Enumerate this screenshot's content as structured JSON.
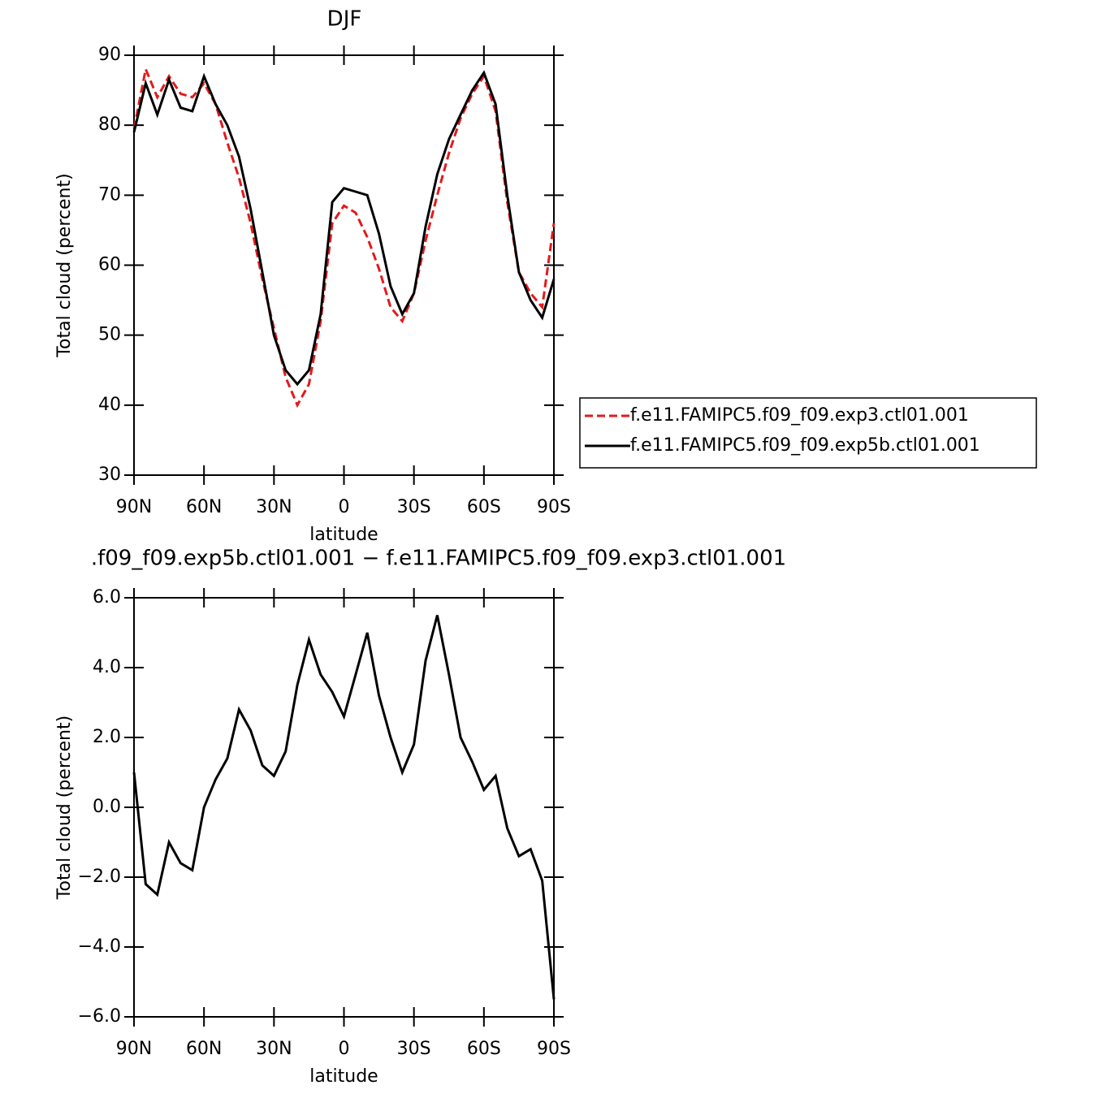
{
  "chart_data": [
    {
      "type": "line",
      "title": "DJF",
      "xlabel": "latitude",
      "ylabel": "Total cloud (percent)",
      "x": [
        90,
        85,
        80,
        75,
        70,
        65,
        60,
        55,
        50,
        45,
        40,
        35,
        30,
        25,
        20,
        15,
        10,
        5,
        0,
        -5,
        -10,
        -15,
        -20,
        -25,
        -30,
        -35,
        -40,
        -45,
        -50,
        -55,
        -60,
        -65,
        -70,
        -75,
        -80,
        -85,
        -90
      ],
      "xlim": [
        90,
        -90
      ],
      "xticks": [
        {
          "value": 90,
          "label": "90N"
        },
        {
          "value": 60,
          "label": "60N"
        },
        {
          "value": 30,
          "label": "30N"
        },
        0,
        {
          "value": -30,
          "label": "30S"
        },
        {
          "value": -60,
          "label": "60S"
        },
        {
          "value": -90,
          "label": "90S"
        }
      ],
      "ylim": [
        30,
        90
      ],
      "yticks": [
        30,
        40,
        50,
        60,
        70,
        80,
        90
      ],
      "legend": "right",
      "series": [
        {
          "name": "f.e11.FAMIPC5.f09_f09.exp3.ctl01.001",
          "color": "#e31a1c",
          "line_style": "dashed",
          "values": [
            79.5,
            88,
            84,
            87,
            84.5,
            84,
            86,
            83,
            77.5,
            72.5,
            66,
            58,
            51,
            44,
            40,
            43,
            52,
            66,
            68.5,
            67.5,
            64,
            59.5,
            54,
            52,
            56,
            63.5,
            70,
            76,
            81,
            84.5,
            87,
            82,
            69,
            59,
            56,
            54,
            66
          ]
        },
        {
          "name": "f.e11.FAMIPC5.f09_f09.exp5b.ctl01.001",
          "color": "#000000",
          "line_style": "solid",
          "values": [
            79,
            86,
            81.5,
            86.5,
            82.5,
            82,
            87,
            83,
            80,
            75.5,
            68,
            59,
            50,
            45,
            43,
            45,
            53,
            69,
            71,
            70.5,
            70,
            64.5,
            57,
            53,
            56,
            65.5,
            73,
            78,
            81.5,
            85,
            87.5,
            83,
            70,
            59,
            55,
            52.5,
            58
          ]
        }
      ]
    },
    {
      "type": "line",
      "title": ".f09_f09.exp5b.ctl01.001 − f.e11.FAMIPC5.f09_f09.exp3.ctl01.001",
      "xlabel": "latitude",
      "ylabel": "Total cloud (percent)",
      "x": [
        90,
        85,
        80,
        75,
        70,
        65,
        60,
        55,
        50,
        45,
        40,
        35,
        30,
        25,
        20,
        15,
        10,
        5,
        0,
        -5,
        -10,
        -15,
        -20,
        -25,
        -30,
        -35,
        -40,
        -45,
        -50,
        -55,
        -60,
        -65,
        -70,
        -75,
        -80,
        -85,
        -90
      ],
      "xlim": [
        90,
        -90
      ],
      "xticks": [
        {
          "value": 90,
          "label": "90N"
        },
        {
          "value": 60,
          "label": "60N"
        },
        {
          "value": 30,
          "label": "30N"
        },
        0,
        {
          "value": -30,
          "label": "30S"
        },
        {
          "value": -60,
          "label": "60S"
        },
        {
          "value": -90,
          "label": "90S"
        }
      ],
      "ylim": [
        -6,
        6
      ],
      "yticks": [
        {
          "value": -6,
          "label": "−6.0"
        },
        {
          "value": -4,
          "label": "−4.0"
        },
        {
          "value": -2,
          "label": "−2.0"
        },
        {
          "value": 0,
          "label": "0.0"
        },
        {
          "value": 2,
          "label": "2.0"
        },
        {
          "value": 4,
          "label": "4.0"
        },
        {
          "value": 6,
          "label": "6.0"
        }
      ],
      "series": [
        {
          "color": "#000000",
          "line_style": "solid",
          "values": [
            1.0,
            -2.2,
            -2.5,
            -1.0,
            -1.6,
            -1.8,
            0.0,
            0.8,
            1.4,
            2.8,
            2.2,
            1.2,
            0.9,
            1.6,
            3.5,
            4.8,
            3.8,
            3.3,
            2.6,
            3.8,
            5.0,
            3.2,
            2.0,
            1.0,
            1.8,
            4.2,
            5.5,
            3.8,
            2.0,
            1.3,
            0.5,
            0.9,
            -0.6,
            -1.4,
            -1.2,
            -2.1,
            -5.5
          ]
        }
      ]
    }
  ]
}
